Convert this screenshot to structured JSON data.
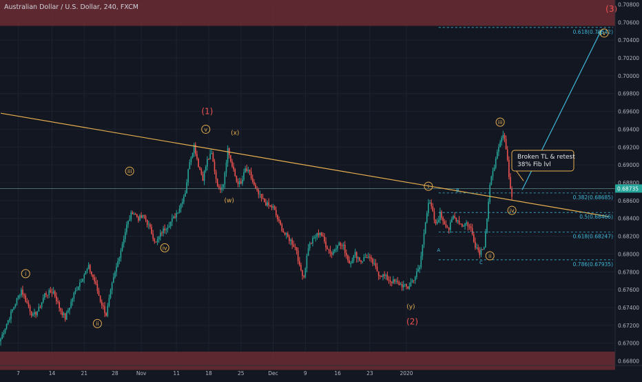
{
  "header": {
    "symbol_title": "Australian Dollar / U.S. Dollar, 240, FXCM"
  },
  "chart_data": {
    "type": "candlestick",
    "title": "Australian Dollar / U.S. Dollar, 240, FXCM",
    "ylim": [
      0.6675,
      0.7085
    ],
    "x_tick_labels": [
      "7",
      "14",
      "21",
      "28",
      "Nov",
      "11",
      "18",
      "25",
      "Dec",
      "9",
      "16",
      "23",
      "2020"
    ],
    "y_tick_labels": [
      "0.66800",
      "0.67000",
      "0.67200",
      "0.67400",
      "0.67600",
      "0.67800",
      "0.68000",
      "0.68200",
      "0.68400",
      "0.68600",
      "0.68800",
      "0.69000",
      "0.69200",
      "0.69400",
      "0.69600",
      "0.69800",
      "0.70000",
      "0.70200",
      "0.70400",
      "0.70600",
      "0.70800"
    ],
    "y_tick_values": [
      0.668,
      0.67,
      0.672,
      0.674,
      0.676,
      0.678,
      0.68,
      0.682,
      0.684,
      0.686,
      0.688,
      0.69,
      0.692,
      0.694,
      0.696,
      0.698,
      0.7,
      0.702,
      0.704,
      0.706,
      0.708
    ],
    "current_price_label": "0.68735",
    "current_price": 0.68735,
    "waypoints": [
      [
        0,
        0.6705
      ],
      [
        3,
        0.6718
      ],
      [
        10,
        0.6745
      ],
      [
        14,
        0.676
      ],
      [
        18,
        0.6745
      ],
      [
        22,
        0.673
      ],
      [
        26,
        0.6738
      ],
      [
        30,
        0.6755
      ],
      [
        36,
        0.6758
      ],
      [
        40,
        0.674
      ],
      [
        44,
        0.6728
      ],
      [
        50,
        0.6755
      ],
      [
        56,
        0.6775
      ],
      [
        60,
        0.6785
      ],
      [
        64,
        0.677
      ],
      [
        68,
        0.6748
      ],
      [
        72,
        0.6732
      ],
      [
        76,
        0.6765
      ],
      [
        82,
        0.6805
      ],
      [
        86,
        0.6832
      ],
      [
        90,
        0.6848
      ],
      [
        94,
        0.684
      ],
      [
        98,
        0.6842
      ],
      [
        102,
        0.6828
      ],
      [
        106,
        0.6812
      ],
      [
        110,
        0.6825
      ],
      [
        114,
        0.6832
      ],
      [
        118,
        0.684
      ],
      [
        122,
        0.6852
      ],
      [
        126,
        0.687
      ],
      [
        129,
        0.6905
      ],
      [
        132,
        0.6922
      ],
      [
        135,
        0.69
      ],
      [
        138,
        0.6885
      ],
      [
        141,
        0.6905
      ],
      [
        144,
        0.6912
      ],
      [
        147,
        0.6885
      ],
      [
        149,
        0.6872
      ],
      [
        152,
        0.688
      ],
      [
        155,
        0.6918
      ],
      [
        158,
        0.6898
      ],
      [
        161,
        0.6882
      ],
      [
        164,
        0.6878
      ],
      [
        167,
        0.6895
      ],
      [
        170,
        0.689
      ],
      [
        174,
        0.6872
      ],
      [
        178,
        0.6862
      ],
      [
        182,
        0.6855
      ],
      [
        186,
        0.6852
      ],
      [
        190,
        0.6835
      ],
      [
        194,
        0.6822
      ],
      [
        198,
        0.6815
      ],
      [
        202,
        0.6805
      ],
      [
        204,
        0.6785
      ],
      [
        207,
        0.6775
      ],
      [
        210,
        0.6808
      ],
      [
        214,
        0.6818
      ],
      [
        218,
        0.6825
      ],
      [
        222,
        0.681
      ],
      [
        226,
        0.68
      ],
      [
        230,
        0.6812
      ],
      [
        234,
        0.6808
      ],
      [
        238,
        0.679
      ],
      [
        242,
        0.68
      ],
      [
        246,
        0.6792
      ],
      [
        250,
        0.6798
      ],
      [
        254,
        0.679
      ],
      [
        258,
        0.6778
      ],
      [
        262,
        0.6775
      ],
      [
        266,
        0.677
      ],
      [
        270,
        0.6768
      ],
      [
        274,
        0.6765
      ],
      [
        278,
        0.6762
      ],
      [
        280,
        0.6768
      ],
      [
        283,
        0.6775
      ],
      [
        286,
        0.6785
      ],
      [
        288,
        0.681
      ],
      [
        290,
        0.6838
      ],
      [
        292,
        0.6858
      ],
      [
        294,
        0.6852
      ],
      [
        297,
        0.6832
      ],
      [
        300,
        0.6845
      ],
      [
        303,
        0.6835
      ],
      [
        306,
        0.6828
      ],
      [
        309,
        0.6842
      ],
      [
        312,
        0.6838
      ],
      [
        315,
        0.6832
      ],
      [
        318,
        0.6835
      ],
      [
        321,
        0.6828
      ],
      [
        324,
        0.681
      ],
      [
        327,
        0.6802
      ],
      [
        330,
        0.681
      ],
      [
        332,
        0.684
      ],
      [
        334,
        0.6875
      ],
      [
        336,
        0.6895
      ],
      [
        338,
        0.6905
      ],
      [
        340,
        0.6918
      ],
      [
        342,
        0.693
      ],
      [
        344,
        0.6932
      ],
      [
        346,
        0.6905
      ],
      [
        348,
        0.6873
      ],
      [
        349,
        0.6865
      ]
    ],
    "trendline": {
      "color": "#e8b04f",
      "from": [
        0,
        0.6958
      ],
      "to": [
        415,
        0.6842
      ]
    },
    "price_line": {
      "value": 0.68735,
      "color": "#5c8a8a"
    },
    "zones": [
      {
        "from": 0.7085,
        "to": 0.7056,
        "color": "#6b2b33"
      },
      {
        "from": 0.66905,
        "to": 0.667,
        "color": "#6b2b33"
      }
    ],
    "fib_levels": [
      {
        "label": "0.618(0.70542)",
        "value": 0.70542,
        "x_start": 299
      },
      {
        "label": "0.382(0.68685)",
        "value": 0.68685,
        "x_start": 299
      },
      {
        "label": "0.5(0.68466)",
        "value": 0.68466,
        "x_start": 299
      },
      {
        "label": "0.618(0.68247)",
        "value": 0.68247,
        "x_start": 299
      },
      {
        "label": "0.786(0.67935)",
        "value": 0.67935,
        "x_start": 299
      }
    ],
    "projection_arrow": {
      "color": "#3fb8d8",
      "from": [
        356,
        0.6872
      ],
      "to": [
        410,
        0.7051
      ]
    },
    "wave_labels": [
      {
        "text": "i",
        "x": 17,
        "y": 0.6778,
        "color": "#e8b04f",
        "circled": true
      },
      {
        "text": "ii",
        "x": 66,
        "y": 0.6722,
        "color": "#e8b04f",
        "circled": true
      },
      {
        "text": "iii",
        "x": 88,
        "y": 0.6893,
        "color": "#e8b04f",
        "circled": true
      },
      {
        "text": "iv",
        "x": 112,
        "y": 0.6807,
        "color": "#e8b04f",
        "circled": true
      },
      {
        "text": "v",
        "x": 140,
        "y": 0.694,
        "color": "#e8b04f",
        "circled": true
      },
      {
        "text": "(1)",
        "x": 141,
        "y": 0.696,
        "color": "#ef5350",
        "circled": false
      },
      {
        "text": "(x)",
        "x": 160,
        "y": 0.6937,
        "color": "#e8b04f",
        "circled": false
      },
      {
        "text": "(w)",
        "x": 156,
        "y": 0.6861,
        "color": "#e8b04f",
        "circled": false
      },
      {
        "text": "(y)",
        "x": 280,
        "y": 0.6742,
        "color": "#e8b04f",
        "circled": false
      },
      {
        "text": "(2)",
        "x": 281,
        "y": 0.6724,
        "color": "#ef5350",
        "circled": false
      },
      {
        "text": "i",
        "x": 292,
        "y": 0.6876,
        "color": "#e8b04f",
        "circled": true
      },
      {
        "text": "ii",
        "x": 334,
        "y": 0.6798,
        "color": "#e8b04f",
        "circled": true
      },
      {
        "text": "iii",
        "x": 341,
        "y": 0.6948,
        "color": "#e8b04f",
        "circled": true
      },
      {
        "text": "iv",
        "x": 349,
        "y": 0.6849,
        "color": "#e8b04f",
        "circled": true
      },
      {
        "text": "v",
        "x": 412,
        "y": 0.7048,
        "color": "#e8b04f",
        "circled": true
      },
      {
        "text": "(3)",
        "x": 417,
        "y": 0.7075,
        "color": "#ef5350",
        "circled": false
      }
    ],
    "abc_labels": [
      {
        "text": "A",
        "x": 299,
        "y": 0.6805
      },
      {
        "text": "B",
        "x": 312,
        "y": 0.6872
      },
      {
        "text": "C",
        "x": 328,
        "y": 0.6791
      }
    ],
    "annotation": {
      "lines": [
        "Broken TL & retest",
        "38% Fib lvl"
      ],
      "anchor": [
        357,
        0.6882
      ],
      "color": "#e8b04f"
    }
  }
}
